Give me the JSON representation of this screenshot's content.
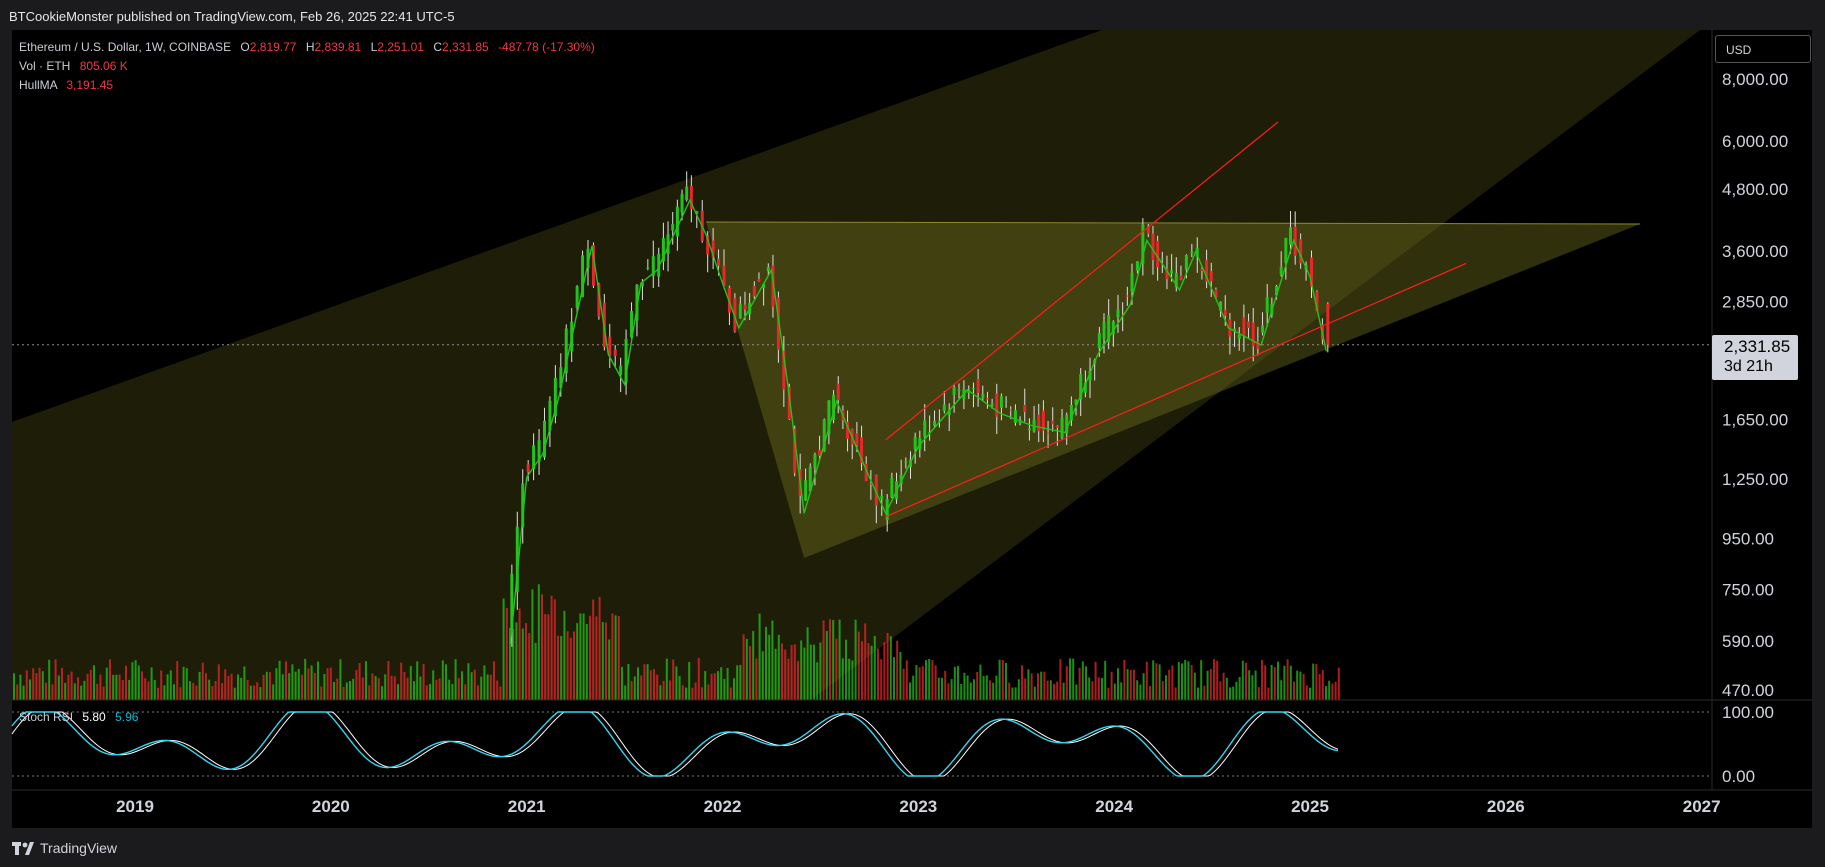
{
  "header": {
    "publisher_line": "BTCookieMonster published on TradingView.com, Feb 26, 2025 22:41 UTC-5"
  },
  "legend": {
    "symbol": "Ethereum / U.S. Dollar, 1W, COINBASE",
    "o_label": "O",
    "o_value": "2,819.77",
    "h_label": "H",
    "h_value": "2,839.81",
    "l_label": "L",
    "l_value": "2,251.01",
    "c_label": "C",
    "c_value": "2,331.85",
    "change": "-487.78 (-17.30%)",
    "vol_label": "Vol · ETH",
    "vol_value": "805.06 K",
    "hull_label": "HullMA",
    "hull_value": "3,191.45",
    "stoch_label": "Stoch RSI",
    "stoch_k": "5.80",
    "stoch_d": "5.96"
  },
  "currency_button": "USD",
  "price_tag": {
    "price": "2,331.85",
    "countdown": "3d 21h"
  },
  "brand": "TradingView",
  "colors": {
    "up": "#22c31a",
    "down": "#e8262b",
    "hull_up": "#22c31a",
    "hull_down": "#e8262b",
    "channel_fill": "#6b6a1c",
    "trendline": "#ff1e1e",
    "stoch_k": "#33d6f0",
    "stoch_d": "#ffffff"
  },
  "chart_data": [
    {
      "type": "candlestick",
      "title": "Ethereum / U.S. Dollar, 1W, COINBASE",
      "y_scale": "log",
      "y_ticks": [
        "8,000.00",
        "6,000.00",
        "4,800.00",
        "3,600.00",
        "2,850.00",
        "1,650.00",
        "1,250.00",
        "950.00",
        "750.00",
        "590.00",
        "470.00"
      ],
      "x_ticks": [
        "2019",
        "2020",
        "2021",
        "2022",
        "2023",
        "2024",
        "2025",
        "2026",
        "2027"
      ],
      "x_range": [
        "2018-06",
        "2027-01"
      ],
      "ohlc_last": {
        "open": 2819.77,
        "high": 2839.81,
        "low": 2251.01,
        "close": 2331.85
      },
      "close_path": [
        {
          "x": "2020-12",
          "y": 600
        },
        {
          "x": "2021-01",
          "y": 1300
        },
        {
          "x": "2021-02",
          "y": 1450
        },
        {
          "x": "2021-03",
          "y": 1900
        },
        {
          "x": "2021-04",
          "y": 2700
        },
        {
          "x": "2021-05",
          "y": 3800
        },
        {
          "x": "2021-06",
          "y": 2300
        },
        {
          "x": "2021-07",
          "y": 2000
        },
        {
          "x": "2021-08",
          "y": 3200
        },
        {
          "x": "2021-09",
          "y": 3400
        },
        {
          "x": "2021-11",
          "y": 4700
        },
        {
          "x": "2021-12",
          "y": 4000
        },
        {
          "x": "2022-01",
          "y": 3200
        },
        {
          "x": "2022-02",
          "y": 2600
        },
        {
          "x": "2022-04",
          "y": 3400
        },
        {
          "x": "2022-05",
          "y": 2000
        },
        {
          "x": "2022-06",
          "y": 1100
        },
        {
          "x": "2022-08",
          "y": 1850
        },
        {
          "x": "2022-10",
          "y": 1300
        },
        {
          "x": "2022-11",
          "y": 1100
        },
        {
          "x": "2023-01",
          "y": 1500
        },
        {
          "x": "2023-04",
          "y": 1950
        },
        {
          "x": "2023-06",
          "y": 1750
        },
        {
          "x": "2023-08",
          "y": 1650
        },
        {
          "x": "2023-10",
          "y": 1600
        },
        {
          "x": "2023-12",
          "y": 2300
        },
        {
          "x": "2024-02",
          "y": 2900
        },
        {
          "x": "2024-03",
          "y": 3900
        },
        {
          "x": "2024-05",
          "y": 3100
        },
        {
          "x": "2024-06",
          "y": 3700
        },
        {
          "x": "2024-08",
          "y": 2600
        },
        {
          "x": "2024-10",
          "y": 2400
        },
        {
          "x": "2024-12",
          "y": 3900
        },
        {
          "x": "2025-01",
          "y": 3300
        },
        {
          "x": "2025-02",
          "y": 2331.85
        }
      ],
      "annotations": {
        "wide_channel": "descending fill (upper boundary rising from 2018 to 2027)",
        "horizontal_resistance": 4050,
        "rising_wedge_support_from": {
          "x": "2022-11",
          "y": 1050
        },
        "rising_wedge_resistance_to": {
          "x": "2025-09",
          "y": 6300
        }
      }
    },
    {
      "type": "bar",
      "name": "Vol · ETH",
      "last_value": "805.06 K"
    },
    {
      "type": "line",
      "name": "Stoch RSI",
      "y_ticks": [
        "100.00",
        "0.00"
      ],
      "last_values": {
        "k": 5.8,
        "d": 5.96
      }
    }
  ]
}
